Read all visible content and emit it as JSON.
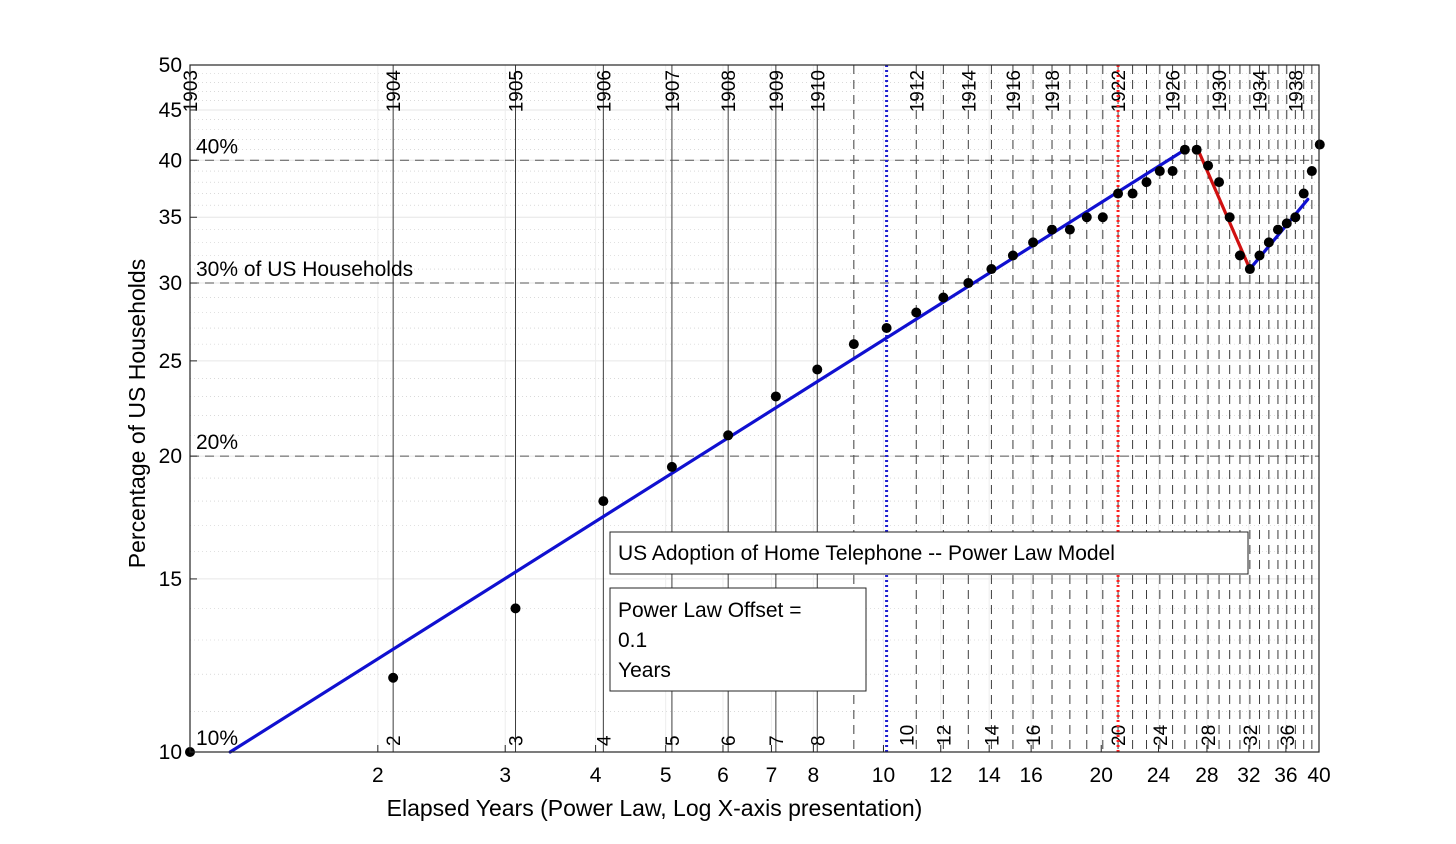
{
  "chart_data": {
    "type": "scatter",
    "title": "US Adoption of Home Telephone -- Power Law Model",
    "xlabel": "Elapsed Years (Power Law, Log X-axis presentation)",
    "ylabel": "Percentage of US Households",
    "xscale": "log",
    "yscale": "log",
    "xlim": [
      1.1,
      40
    ],
    "ylim": [
      10,
      50
    ],
    "grid": true,
    "x_ticks": [
      {
        "v": 2,
        "label": "2"
      },
      {
        "v": 3,
        "label": "3"
      },
      {
        "v": 4,
        "label": "4"
      },
      {
        "v": 5,
        "label": "5"
      },
      {
        "v": 6,
        "label": "6"
      },
      {
        "v": 7,
        "label": "7"
      },
      {
        "v": 8,
        "label": "8"
      },
      {
        "v": 10,
        "label": "10"
      },
      {
        "v": 12,
        "label": "12"
      },
      {
        "v": 14,
        "label": "14"
      },
      {
        "v": 16,
        "label": "16"
      },
      {
        "v": 20,
        "label": "20"
      },
      {
        "v": 24,
        "label": "24"
      },
      {
        "v": 28,
        "label": "28"
      },
      {
        "v": 32,
        "label": "32"
      },
      {
        "v": 36,
        "label": "36"
      },
      {
        "v": 40,
        "label": "40"
      }
    ],
    "y_ticks": [
      {
        "v": 10,
        "label": "10"
      },
      {
        "v": 15,
        "label": "15"
      },
      {
        "v": 20,
        "label": "20"
      },
      {
        "v": 25,
        "label": "25"
      },
      {
        "v": 30,
        "label": "30"
      },
      {
        "v": 35,
        "label": "35"
      },
      {
        "v": 40,
        "label": "40"
      },
      {
        "v": 45,
        "label": "45"
      },
      {
        "v": 50,
        "label": "50"
      }
    ],
    "year_markers": [
      {
        "x": 1.1,
        "label": "1903",
        "elapsed": ""
      },
      {
        "x": 2.1,
        "label": "1904",
        "elapsed": "2"
      },
      {
        "x": 3.1,
        "label": "1905",
        "elapsed": "3"
      },
      {
        "x": 4.1,
        "label": "1906",
        "elapsed": "4"
      },
      {
        "x": 5.1,
        "label": "1907",
        "elapsed": "5"
      },
      {
        "x": 6.1,
        "label": "1908",
        "elapsed": "6"
      },
      {
        "x": 7.1,
        "label": "1909",
        "elapsed": "7"
      },
      {
        "x": 8.1,
        "label": "1910",
        "elapsed": "8"
      },
      {
        "x": 9.1,
        "label": "",
        "elapsed": ""
      },
      {
        "x": 11.1,
        "label": "1912",
        "elapsed": ""
      },
      {
        "x": 12.1,
        "label": "",
        "elapsed": "12"
      },
      {
        "x": 13.1,
        "label": "1914",
        "elapsed": ""
      },
      {
        "x": 14.1,
        "label": "",
        "elapsed": "14"
      },
      {
        "x": 15.1,
        "label": "1916",
        "elapsed": ""
      },
      {
        "x": 16.1,
        "label": "",
        "elapsed": "16"
      },
      {
        "x": 17.1,
        "label": "1918",
        "elapsed": ""
      },
      {
        "x": 18.1,
        "label": "",
        "elapsed": ""
      },
      {
        "x": 19.1,
        "label": "",
        "elapsed": ""
      },
      {
        "x": 20.1,
        "label": "",
        "elapsed": ""
      },
      {
        "x": 21.1,
        "label": "1922",
        "elapsed": "20"
      },
      {
        "x": 22.1,
        "label": "",
        "elapsed": ""
      },
      {
        "x": 23.1,
        "label": "",
        "elapsed": ""
      },
      {
        "x": 24.1,
        "label": "",
        "elapsed": "24"
      },
      {
        "x": 25.1,
        "label": "1926",
        "elapsed": ""
      },
      {
        "x": 26.1,
        "label": "",
        "elapsed": ""
      },
      {
        "x": 27.1,
        "label": "",
        "elapsed": ""
      },
      {
        "x": 28.1,
        "label": "",
        "elapsed": "28"
      },
      {
        "x": 29.1,
        "label": "1930",
        "elapsed": ""
      },
      {
        "x": 30.1,
        "label": "",
        "elapsed": ""
      },
      {
        "x": 31.1,
        "label": "",
        "elapsed": ""
      },
      {
        "x": 32.1,
        "label": "",
        "elapsed": "32"
      },
      {
        "x": 33.1,
        "label": "1934",
        "elapsed": ""
      },
      {
        "x": 34.1,
        "label": "",
        "elapsed": ""
      },
      {
        "x": 35.1,
        "label": "",
        "elapsed": ""
      },
      {
        "x": 36.1,
        "label": "",
        "elapsed": "36"
      },
      {
        "x": 37.1,
        "label": "1938",
        "elapsed": ""
      },
      {
        "x": 38.1,
        "label": "",
        "elapsed": ""
      },
      {
        "x": 39.1,
        "label": "",
        "elapsed": ""
      }
    ],
    "markers": [
      {
        "x": 10.1,
        "color": "#1f1fd0",
        "style": "dotted",
        "label": "10"
      },
      {
        "x": 21.1,
        "color": "#ff2020",
        "style": "dotted",
        "label": ""
      }
    ],
    "horizontal_refs": [
      {
        "y": 10,
        "label": "10%"
      },
      {
        "y": 20,
        "label": "20%"
      },
      {
        "y": 30,
        "label": "30% of US Households"
      },
      {
        "y": 40,
        "label": "40%"
      }
    ],
    "points": [
      {
        "x": 1.1,
        "y": 10.0
      },
      {
        "x": 2.1,
        "y": 11.9
      },
      {
        "x": 3.1,
        "y": 14.0
      },
      {
        "x": 4.1,
        "y": 18.0
      },
      {
        "x": 5.1,
        "y": 19.5
      },
      {
        "x": 6.1,
        "y": 21.0
      },
      {
        "x": 7.1,
        "y": 23.0
      },
      {
        "x": 8.1,
        "y": 24.5
      },
      {
        "x": 9.1,
        "y": 26.0
      },
      {
        "x": 10.1,
        "y": 27.0
      },
      {
        "x": 11.1,
        "y": 28.0
      },
      {
        "x": 12.1,
        "y": 29.0
      },
      {
        "x": 13.1,
        "y": 30.0
      },
      {
        "x": 14.1,
        "y": 31.0
      },
      {
        "x": 15.1,
        "y": 32.0
      },
      {
        "x": 16.1,
        "y": 33.0
      },
      {
        "x": 17.1,
        "y": 34.0
      },
      {
        "x": 18.1,
        "y": 34.0
      },
      {
        "x": 19.1,
        "y": 35.0
      },
      {
        "x": 20.1,
        "y": 35.0
      },
      {
        "x": 21.1,
        "y": 37.0
      },
      {
        "x": 22.1,
        "y": 37.0
      },
      {
        "x": 23.1,
        "y": 38.0
      },
      {
        "x": 24.1,
        "y": 39.0
      },
      {
        "x": 25.1,
        "y": 39.0
      },
      {
        "x": 26.1,
        "y": 41.0
      },
      {
        "x": 27.1,
        "y": 41.0
      },
      {
        "x": 28.1,
        "y": 39.5
      },
      {
        "x": 29.1,
        "y": 38.0
      },
      {
        "x": 30.1,
        "y": 35.0
      },
      {
        "x": 31.1,
        "y": 32.0
      },
      {
        "x": 32.1,
        "y": 31.0
      },
      {
        "x": 33.1,
        "y": 32.0
      },
      {
        "x": 34.1,
        "y": 33.0
      },
      {
        "x": 35.1,
        "y": 34.0
      },
      {
        "x": 36.1,
        "y": 34.5
      },
      {
        "x": 37.1,
        "y": 35.0
      },
      {
        "x": 38.1,
        "y": 37.0
      },
      {
        "x": 39.1,
        "y": 39.0
      },
      {
        "x": 40.1,
        "y": 41.5
      }
    ],
    "fit_lines": [
      {
        "color": "#1010d0",
        "x": [
          1.25,
          26.1
        ],
        "y": [
          10.0,
          41.0
        ]
      },
      {
        "color": "#d01010",
        "x": [
          27.1,
          32.1
        ],
        "y": [
          41.3,
          31.0
        ]
      },
      {
        "color": "#1010d0",
        "x": [
          32.1,
          38.6
        ],
        "y": [
          31.0,
          36.5
        ]
      }
    ],
    "textbox_title": "US Adoption of Home Telephone -- Power Law Model",
    "textbox_offset_lines": [
      "Power Law Offset =",
      "0.1",
      "Years"
    ]
  }
}
